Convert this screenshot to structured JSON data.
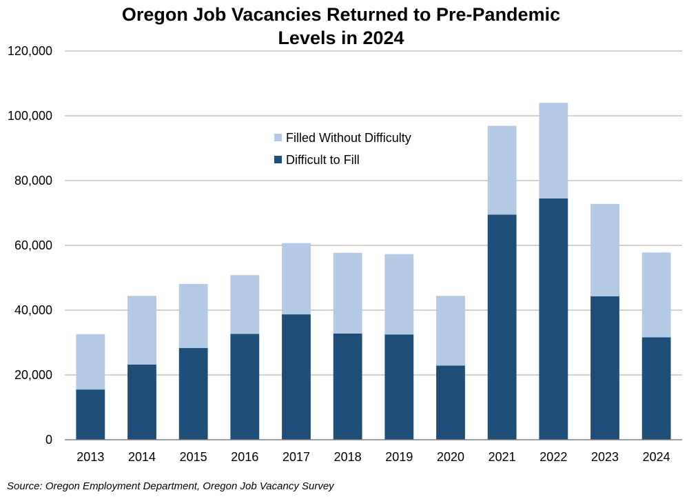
{
  "chart_data": {
    "type": "bar",
    "stacked": true,
    "title_line1": "Oregon Job Vacancies Returned to Pre-Pandemic",
    "title_line2": "Levels in 2024",
    "categories": [
      "2013",
      "2014",
      "2015",
      "2016",
      "2017",
      "2018",
      "2019",
      "2020",
      "2021",
      "2022",
      "2023",
      "2024"
    ],
    "series": [
      {
        "name": "Difficult to Fill",
        "color": "#1f4e79",
        "values": [
          15500,
          23200,
          28300,
          32700,
          38700,
          32800,
          32500,
          22900,
          69500,
          74500,
          44300,
          31600
        ]
      },
      {
        "name": "Filled Without Difficulty",
        "color": "#b4c9e3",
        "values": [
          17100,
          21200,
          19800,
          18100,
          22000,
          24900,
          24800,
          21500,
          27400,
          29500,
          28500,
          26200
        ]
      }
    ],
    "legend_order": [
      "Filled Without Difficulty",
      "Difficult to Fill"
    ],
    "legend_position": "upper-middle",
    "ylim": [
      0,
      120000
    ],
    "yticks": [
      0,
      20000,
      40000,
      60000,
      80000,
      100000,
      120000
    ],
    "ytick_labels": [
      "0",
      "20,000",
      "40,000",
      "60,000",
      "80,000",
      "100,000",
      "120,000"
    ],
    "grid": true,
    "xlabel": "",
    "ylabel": "",
    "source": "Source: Oregon Employment Department, Oregon Job Vacancy Survey"
  }
}
